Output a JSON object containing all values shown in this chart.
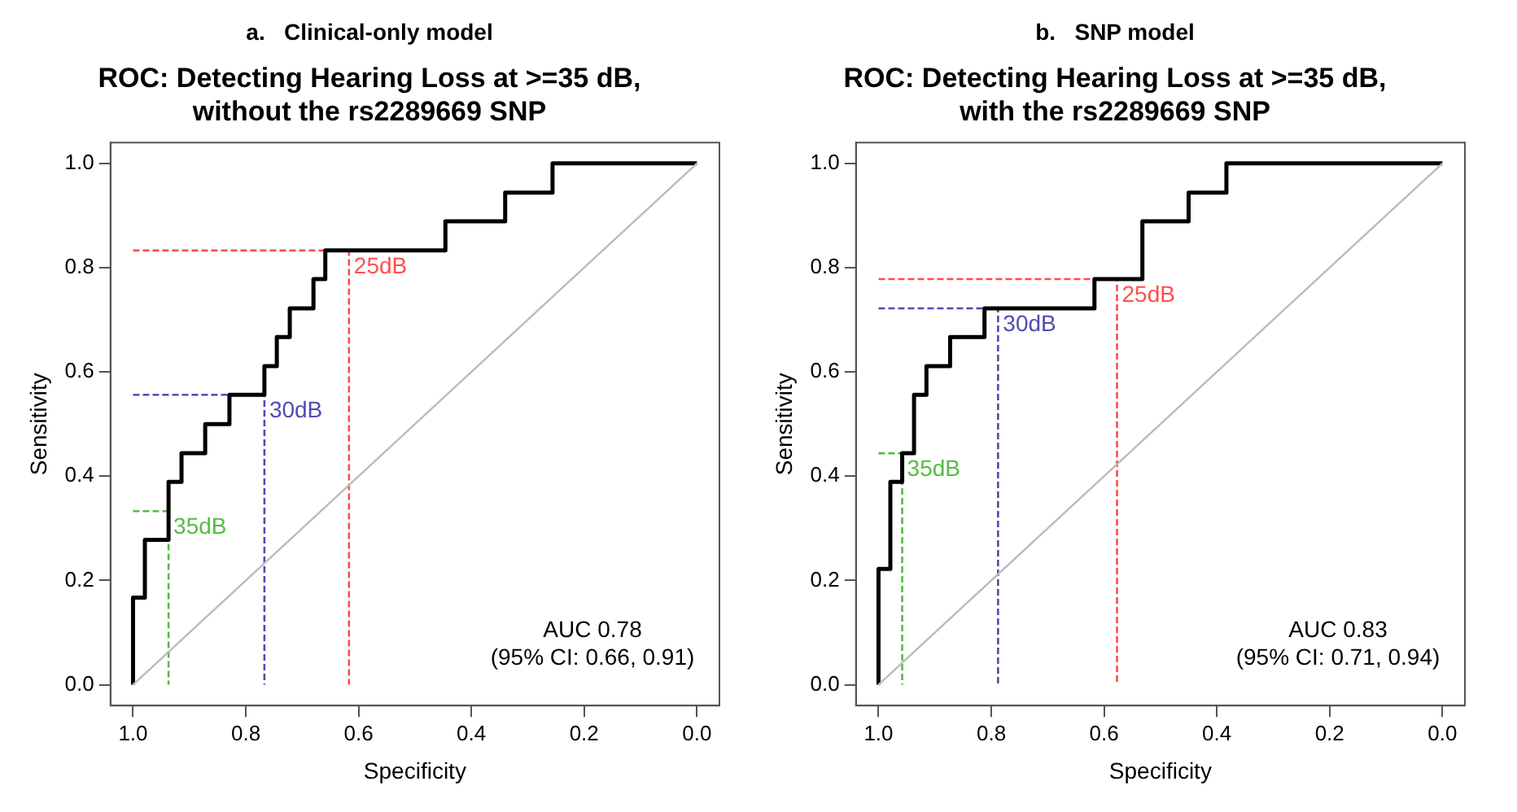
{
  "chart_data": [
    {
      "type": "line",
      "title": "a.   Clinical-only model",
      "subtitle": "ROC: Detecting Hearing Loss at >=35 dB,\nwithout the rs2289669 SNP",
      "xlabel": "Specificity",
      "ylabel": "Sensitivity",
      "xlim": [
        1.04,
        -0.04
      ],
      "ylim": [
        -0.04,
        1.04
      ],
      "xticks": [
        {
          "value": 1,
          "label": "1.0"
        },
        {
          "value": 0.8,
          "label": "0.8"
        },
        {
          "value": 0.6,
          "label": "0.6"
        },
        {
          "value": 0.4,
          "label": "0.4"
        },
        {
          "value": 0.2,
          "label": "0.2"
        },
        {
          "value": 0,
          "label": "0.0"
        }
      ],
      "yticks": [
        {
          "value": 0,
          "label": "0.0"
        },
        {
          "value": 0.2,
          "label": "0.2"
        },
        {
          "value": 0.4,
          "label": "0.4"
        },
        {
          "value": 0.6,
          "label": "0.6"
        },
        {
          "value": 0.8,
          "label": "0.8"
        },
        {
          "value": 1,
          "label": "1.0"
        }
      ],
      "grid": false,
      "legend": false,
      "marker": "none",
      "annotations": [
        "AUC 0.78",
        "(95% CI: 0.66, 0.91)"
      ],
      "series": [
        {
          "color": "#bbbbbb",
          "x": [
            1,
            0
          ],
          "values": [
            0,
            1
          ]
        },
        {
          "color": "#000000",
          "x": [
            1,
            1,
            0.979,
            0.979,
            0.937,
            0.937,
            0.914,
            0.914,
            0.872,
            0.872,
            0.829,
            0.829,
            0.767,
            0.767,
            0.745,
            0.745,
            0.722,
            0.722,
            0.68,
            0.68,
            0.659,
            0.659,
            0.446,
            0.446,
            0.34,
            0.34,
            0.256,
            0.256,
            0
          ],
          "values": [
            0,
            0.167,
            0.167,
            0.278,
            0.278,
            0.389,
            0.389,
            0.444,
            0.444,
            0.5,
            0.5,
            0.556,
            0.556,
            0.611,
            0.611,
            0.667,
            0.667,
            0.722,
            0.722,
            0.778,
            0.778,
            0.833,
            0.833,
            0.889,
            0.889,
            0.944,
            0.944,
            1,
            1
          ]
        },
        {
          "name": "25dB",
          "color": "#ff4d4d",
          "line_style": "dashed",
          "x": [
            1,
            0.617,
            0.617
          ],
          "values": [
            0.833,
            0.833,
            0
          ]
        },
        {
          "name": "30dB",
          "color": "#4d4db3",
          "line_style": "dashed",
          "x": [
            1,
            0.767,
            0.767
          ],
          "values": [
            0.556,
            0.556,
            0
          ]
        },
        {
          "name": "35dB",
          "color": "#55bb44",
          "line_style": "dashed",
          "x": [
            1,
            0.937,
            0.937
          ],
          "values": [
            0.333,
            0.333,
            0
          ]
        }
      ]
    },
    {
      "type": "line",
      "title": "b.   SNP model",
      "subtitle": "ROC: Detecting Hearing Loss at >=35 dB,\nwith the rs2289669 SNP",
      "xlabel": "Specificity",
      "ylabel": "Sensitivity",
      "xlim": [
        1.04,
        -0.04
      ],
      "ylim": [
        -0.04,
        1.04
      ],
      "xticks": [
        {
          "value": 1,
          "label": "1.0"
        },
        {
          "value": 0.8,
          "label": "0.8"
        },
        {
          "value": 0.6,
          "label": "0.6"
        },
        {
          "value": 0.4,
          "label": "0.4"
        },
        {
          "value": 0.2,
          "label": "0.2"
        },
        {
          "value": 0,
          "label": "0.0"
        }
      ],
      "yticks": [
        {
          "value": 0,
          "label": "0.0"
        },
        {
          "value": 0.2,
          "label": "0.2"
        },
        {
          "value": 0.4,
          "label": "0.4"
        },
        {
          "value": 0.6,
          "label": "0.6"
        },
        {
          "value": 0.8,
          "label": "0.8"
        },
        {
          "value": 1,
          "label": "1.0"
        }
      ],
      "grid": false,
      "legend": false,
      "marker": "none",
      "annotations": [
        "AUC 0.83",
        "(95% CI: 0.71, 0.94)"
      ],
      "series": [
        {
          "color": "#bbbbbb",
          "x": [
            1,
            0
          ],
          "values": [
            0,
            1
          ]
        },
        {
          "color": "#000000",
          "x": [
            1,
            1,
            0.979,
            0.979,
            0.958,
            0.958,
            0.937,
            0.937,
            0.915,
            0.915,
            0.873,
            0.873,
            0.812,
            0.812,
            0.617,
            0.617,
            0.532,
            0.532,
            0.45,
            0.45,
            0.383,
            0.383,
            0
          ],
          "values": [
            0,
            0.222,
            0.222,
            0.389,
            0.389,
            0.444,
            0.444,
            0.556,
            0.556,
            0.611,
            0.611,
            0.667,
            0.667,
            0.722,
            0.722,
            0.778,
            0.778,
            0.889,
            0.889,
            0.944,
            0.944,
            1,
            1
          ]
        },
        {
          "name": "25dB",
          "color": "#ff4d4d",
          "line_style": "dashed",
          "x": [
            1,
            0.577,
            0.577
          ],
          "values": [
            0.778,
            0.778,
            0
          ]
        },
        {
          "name": "30dB",
          "color": "#4d4db3",
          "line_style": "dashed",
          "x": [
            1,
            0.788,
            0.788
          ],
          "values": [
            0.722,
            0.722,
            0
          ]
        },
        {
          "name": "35dB",
          "color": "#55bb44",
          "line_style": "dashed",
          "x": [
            1,
            0.958,
            0.958
          ],
          "values": [
            0.444,
            0.444,
            0
          ]
        }
      ]
    }
  ]
}
